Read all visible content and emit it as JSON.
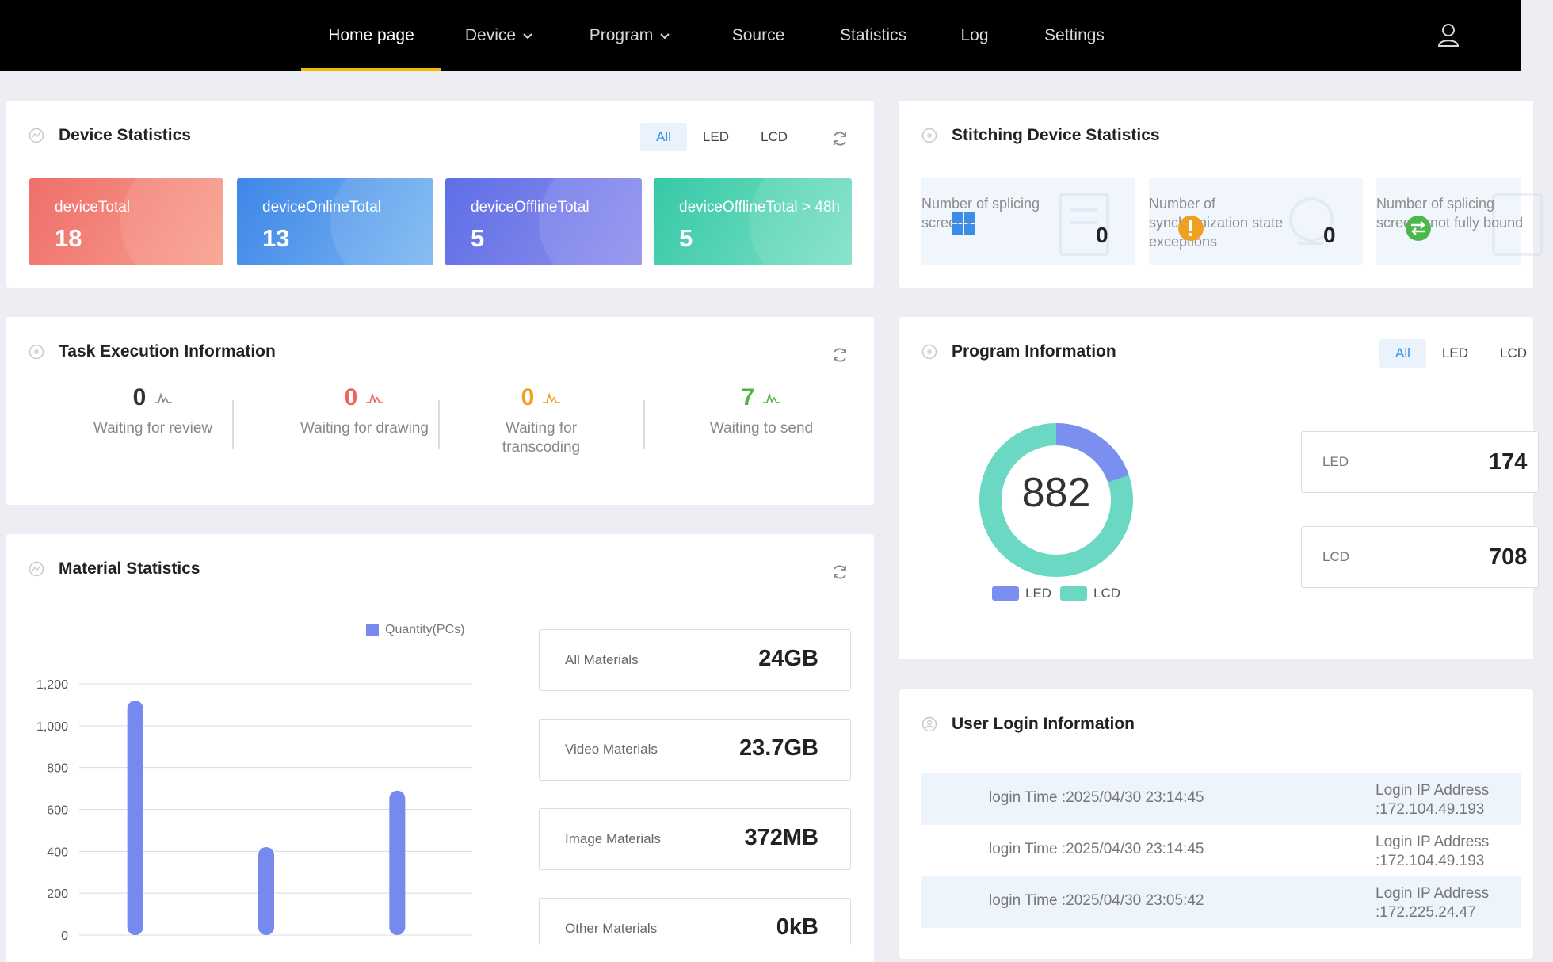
{
  "nav": {
    "items": [
      {
        "label": "Home page",
        "active": true,
        "dropdown": false
      },
      {
        "label": "Device",
        "active": false,
        "dropdown": true
      },
      {
        "label": "Program",
        "active": false,
        "dropdown": true
      },
      {
        "label": "Source",
        "active": false,
        "dropdown": false
      },
      {
        "label": "Statistics",
        "active": false,
        "dropdown": false
      },
      {
        "label": "Log",
        "active": false,
        "dropdown": false
      },
      {
        "label": "Settings",
        "active": false,
        "dropdown": false
      }
    ],
    "user_icon": "user-icon",
    "accent": "#f0b90b"
  },
  "device_stats": {
    "title": "Device Statistics",
    "filters": [
      "All",
      "LED",
      "LCD"
    ],
    "selected_filter": "All",
    "tiles": [
      {
        "label": "deviceTotal",
        "value": "18",
        "color_from": "#ef6f6c",
        "color_to": "#f8a08c"
      },
      {
        "label": "deviceOnlineTotal",
        "value": "13",
        "color_from": "#3f86e8",
        "color_to": "#7ab7f2"
      },
      {
        "label": "deviceOfflineTotal",
        "value": "5",
        "color_from": "#5f6fe6",
        "color_to": "#8f8fee"
      },
      {
        "label": "deviceOfflineTotal > 48h",
        "value": "5",
        "color_from": "#36c9a6",
        "color_to": "#7ee0c8"
      }
    ]
  },
  "stitching": {
    "title": "Stitching Device Statistics",
    "tiles": [
      {
        "label": "Number of splicing screens",
        "value": "0",
        "icon": "grid-icon",
        "icon_color": "#3b8de8"
      },
      {
        "label": "Number of synchronization state exceptions",
        "value": "0",
        "icon": "warning-icon",
        "icon_color": "#f0a020"
      },
      {
        "label": "Number of splicing screens not fully bound",
        "value": "",
        "icon": "swap-icon",
        "icon_color": "#4cb84c"
      }
    ]
  },
  "task": {
    "title": "Task Execution Information",
    "items": [
      {
        "value": "0",
        "label": "Waiting for review",
        "color": "#333333"
      },
      {
        "value": "0",
        "label": "Waiting for drawing",
        "color": "#f0625a"
      },
      {
        "value": "0",
        "label": "Waiting for transcoding",
        "color": "#f0a020"
      },
      {
        "value": "7",
        "label": "Waiting to send",
        "color": "#52b447"
      }
    ]
  },
  "material": {
    "title": "Material Statistics",
    "legend": "Quantity(PCs)",
    "boxes": [
      {
        "label": "All Materials",
        "value": "24GB"
      },
      {
        "label": "Video Materials",
        "value": "23.7GB"
      },
      {
        "label": "Image Materials",
        "value": "372MB"
      },
      {
        "label": "Other Materials",
        "value": "0kB"
      }
    ]
  },
  "chart_data": {
    "type": "bar",
    "series": [
      {
        "name": "Quantity(PCs)",
        "values": [
          1120,
          420,
          690
        ],
        "color": "#7589ee"
      }
    ],
    "categories": [
      "",
      "",
      ""
    ],
    "y_ticks": [
      "0",
      "200",
      "400",
      "600",
      "800",
      "1,000",
      "1,200"
    ],
    "ylim": [
      0,
      1200
    ],
    "title": "",
    "xlabel": "",
    "ylabel": "",
    "legend": "top-right",
    "grid": true
  },
  "program": {
    "title": "Program Information",
    "filters": [
      "All",
      "LED",
      "LCD"
    ],
    "selected_filter": "All",
    "total": "882",
    "led_value": 174,
    "lcd_value": 708,
    "boxes": [
      {
        "label": "LED",
        "value": "174"
      },
      {
        "label": "LCD",
        "value": "708"
      }
    ],
    "legend": [
      "LED",
      "LCD"
    ],
    "colors": {
      "led": "#7b8ff0",
      "lcd": "#6ad8c3"
    }
  },
  "login": {
    "title": "User Login Information",
    "rows": [
      {
        "time": "login Time :2025/04/30 23:14:45",
        "ip_label": "Login IP Address",
        "ip": ":172.104.49.193"
      },
      {
        "time": "login Time :2025/04/30 23:14:45",
        "ip_label": "Login IP Address",
        "ip": ":172.104.49.193"
      },
      {
        "time": "login Time :2025/04/30 23:05:42",
        "ip_label": "Login IP Address",
        "ip": ":172.225.24.47"
      }
    ]
  }
}
